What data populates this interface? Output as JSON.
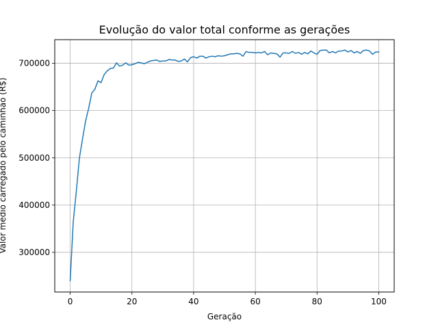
{
  "chart_data": {
    "type": "line",
    "title": "Evolução do valor total conforme as gerações",
    "xlabel": "Geração",
    "ylabel": "Valor médio carregado pelo caminhão (R$)",
    "xlim": [
      -5,
      105
    ],
    "ylim": [
      216000,
      750000
    ],
    "xticks": [
      0,
      20,
      40,
      60,
      80,
      100
    ],
    "yticks": [
      300000,
      400000,
      500000,
      600000,
      700000
    ],
    "grid": true,
    "legend": "none",
    "series": [
      {
        "color": "#1f77b4",
        "x": [
          0,
          1,
          2,
          3,
          4,
          5,
          6,
          7,
          8,
          9,
          10,
          11,
          12,
          13,
          14,
          15,
          16,
          17,
          18,
          19,
          20,
          21,
          22,
          23,
          24,
          25,
          26,
          27,
          28,
          29,
          30,
          31,
          32,
          33,
          34,
          35,
          36,
          37,
          38,
          39,
          40,
          41,
          42,
          43,
          44,
          45,
          46,
          47,
          48,
          49,
          50,
          51,
          52,
          53,
          54,
          55,
          56,
          57,
          58,
          59,
          60,
          61,
          62,
          63,
          64,
          65,
          66,
          67,
          68,
          69,
          70,
          71,
          72,
          73,
          74,
          75,
          76,
          77,
          78,
          79,
          80,
          81,
          82,
          83,
          84,
          85,
          86,
          87,
          88,
          89,
          90,
          91,
          92,
          93,
          94,
          95,
          96,
          97,
          98,
          99,
          100
        ],
        "values": [
          240000,
          365000,
          430000,
          500000,
          540000,
          578000,
          605000,
          637000,
          645000,
          663000,
          659000,
          676000,
          684000,
          689000,
          690000,
          701000,
          694000,
          696000,
          701000,
          696000,
          697000,
          699000,
          702000,
          701000,
          699000,
          702000,
          705000,
          706000,
          707000,
          704000,
          705000,
          705000,
          708000,
          707000,
          707000,
          704000,
          705000,
          709000,
          703000,
          712000,
          714000,
          711000,
          715000,
          715000,
          711000,
          714000,
          715000,
          714000,
          716000,
          715000,
          716000,
          718000,
          720000,
          720000,
          721000,
          720000,
          715000,
          725000,
          723000,
          723000,
          722000,
          723000,
          722000,
          725000,
          718000,
          722000,
          721000,
          720000,
          713000,
          722000,
          722000,
          721000,
          725000,
          721000,
          723000,
          719000,
          723000,
          720000,
          726000,
          722000,
          719000,
          727000,
          728000,
          728000,
          722000,
          725000,
          722000,
          726000,
          726000,
          728000,
          724000,
          727000,
          722000,
          725000,
          721000,
          727000,
          728000,
          726000,
          719000,
          724000,
          724000
        ]
      }
    ]
  }
}
